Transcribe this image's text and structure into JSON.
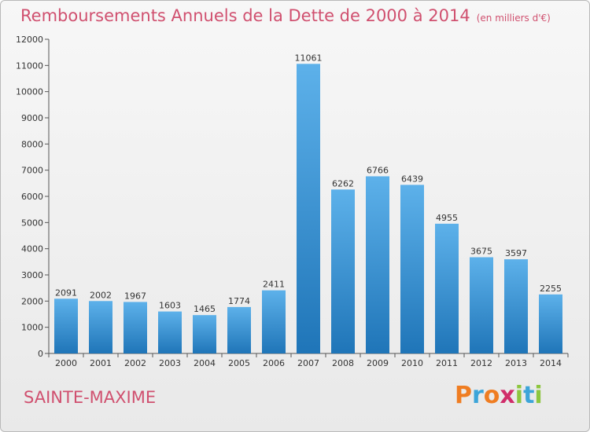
{
  "header": {
    "title": "Remboursements Annuels de la Dette de 2000 à 2014",
    "unit": "(en milliers d'€)"
  },
  "footer": {
    "city": "SAINTE-MAXIME",
    "logo_text": "Proxiti"
  },
  "colors": {
    "title": "#d0506f",
    "bar_top": "#5db1ea",
    "bar_bottom": "#1f75b8",
    "logo": [
      "#ef7d22",
      "#3da5d9",
      "#ef7d22",
      "#d02d6a",
      "#8dc63f",
      "#3da5d9",
      "#8dc63f"
    ]
  },
  "chart_data": {
    "type": "bar",
    "title": "Remboursements Annuels de la Dette de 2000 à 2014",
    "categories": [
      "2000",
      "2001",
      "2002",
      "2003",
      "2004",
      "2005",
      "2006",
      "2007",
      "2008",
      "2009",
      "2010",
      "2011",
      "2012",
      "2013",
      "2014"
    ],
    "values": [
      2091,
      2002,
      1967,
      1603,
      1465,
      1774,
      2411,
      11061,
      6262,
      6766,
      6439,
      4955,
      3675,
      3597,
      2255
    ],
    "ylim": [
      0,
      12000
    ],
    "yticks": [
      0,
      1000,
      2000,
      3000,
      4000,
      5000,
      6000,
      7000,
      8000,
      9000,
      10000,
      11000,
      12000
    ],
    "grid": false,
    "data_labels": true
  }
}
